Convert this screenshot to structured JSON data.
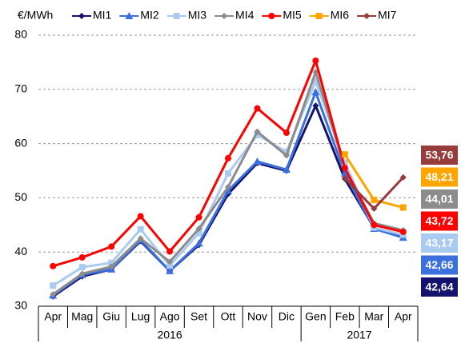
{
  "chart_data": {
    "type": "line",
    "y_label": "€/MWh",
    "category_groups": [
      {
        "label": "2016",
        "categories": [
          "Apr",
          "Mag",
          "Giu",
          "Lug",
          "Ago",
          "Set",
          "Ott",
          "Nov",
          "Dic"
        ]
      },
      {
        "label": "2017",
        "categories": [
          "Gen",
          "Feb",
          "Mar",
          "Apr"
        ]
      }
    ],
    "ylim": [
      30,
      80
    ],
    "yticks": [
      30,
      40,
      50,
      60,
      70,
      80
    ],
    "grid": true,
    "series": [
      {
        "name": "MI1",
        "color": "#14146e",
        "marker": "diamond",
        "values": [
          31.8,
          35.5,
          36.8,
          42,
          36.5,
          41.3,
          50.7,
          56.4,
          55,
          67,
          53.5,
          44.5,
          42.64
        ],
        "value_labels": [
          null,
          null,
          null,
          null,
          null,
          null,
          null,
          null,
          null,
          null,
          null,
          null,
          "42,64"
        ]
      },
      {
        "name": "MI2",
        "color": "#3a6fdc",
        "marker": "triangle",
        "values": [
          32,
          35.8,
          36.8,
          42.2,
          36.5,
          41.6,
          51.3,
          56.7,
          55.2,
          69.5,
          54.5,
          44.3,
          42.66
        ],
        "value_labels": [
          null,
          null,
          null,
          null,
          null,
          null,
          null,
          null,
          null,
          null,
          null,
          null,
          "42,66"
        ]
      },
      {
        "name": "MI3",
        "color": "#a9cbf0",
        "marker": "square",
        "values": [
          33.8,
          37.2,
          38,
          44.2,
          37.5,
          43.5,
          54.5,
          61.6,
          58.5,
          71.5,
          56.5,
          44.5,
          43.17
        ],
        "value_labels": [
          null,
          null,
          null,
          null,
          null,
          null,
          null,
          null,
          null,
          null,
          null,
          null,
          "43,17"
        ]
      },
      {
        "name": "MI4",
        "color": "#8c8c8c",
        "marker": "diamond",
        "values": [
          32.2,
          36,
          37.3,
          42.5,
          38.2,
          44.3,
          52,
          62.2,
          57.8,
          73.2,
          55.5,
          45.3,
          44.01
        ],
        "value_labels": [
          null,
          null,
          null,
          null,
          null,
          null,
          null,
          null,
          null,
          null,
          null,
          null,
          "44,01"
        ]
      },
      {
        "name": "MI5",
        "color": "#ff0000",
        "marker": "circle",
        "values": [
          37.4,
          39,
          41,
          46.6,
          40.1,
          46.4,
          57.3,
          66.5,
          62,
          75.3,
          55.5,
          45,
          43.72
        ],
        "value_labels": [
          null,
          null,
          null,
          null,
          null,
          null,
          null,
          null,
          null,
          null,
          null,
          null,
          "43,72"
        ]
      },
      {
        "name": "MI6",
        "color": "#ffa500",
        "marker": "square",
        "values": [
          null,
          null,
          null,
          null,
          null,
          null,
          null,
          null,
          null,
          null,
          58,
          49.6,
          48.21
        ],
        "value_labels": [
          null,
          null,
          null,
          null,
          null,
          null,
          null,
          null,
          null,
          null,
          null,
          null,
          "48,21"
        ]
      },
      {
        "name": "MI7",
        "color": "#963c3c",
        "marker": "diamond",
        "values": [
          null,
          null,
          null,
          null,
          null,
          null,
          null,
          null,
          null,
          null,
          53.6,
          48,
          53.76
        ],
        "value_labels": [
          null,
          null,
          null,
          null,
          null,
          null,
          null,
          null,
          null,
          null,
          null,
          null,
          "53,76"
        ]
      }
    ]
  }
}
